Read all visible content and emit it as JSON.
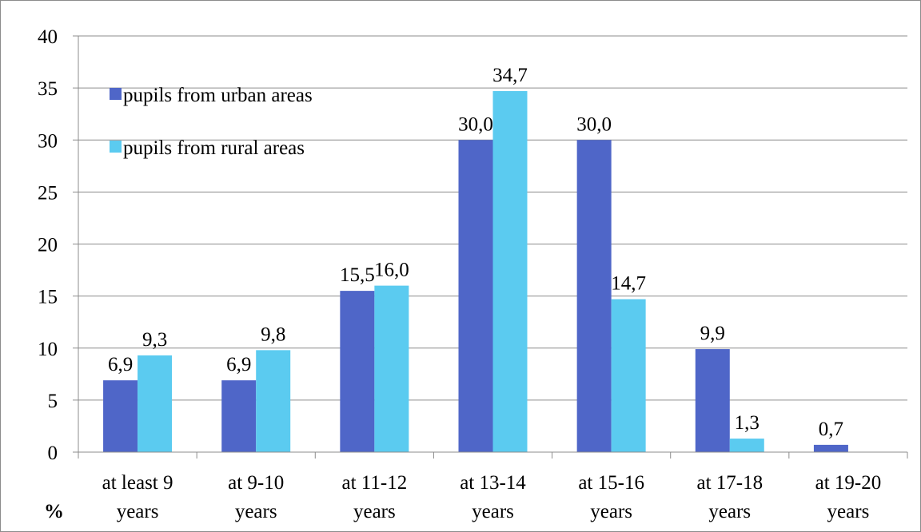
{
  "chart_data": {
    "type": "bar",
    "title": "",
    "xlabel": "",
    "ylabel": "%",
    "ylim": [
      0,
      40
    ],
    "yticks": [
      0,
      5,
      10,
      15,
      20,
      25,
      30,
      35,
      40
    ],
    "grid": "horizontal",
    "legend_position": "top-left",
    "categories": [
      [
        "at least 9",
        "years"
      ],
      [
        "at 9-10",
        "years"
      ],
      [
        "at 11-12",
        "years"
      ],
      [
        "at 13-14",
        "years"
      ],
      [
        "at 15-16",
        "years"
      ],
      [
        "at 17-18",
        "years"
      ],
      [
        "at 19-20",
        "years"
      ]
    ],
    "series": [
      {
        "name": "pupils from urban areas",
        "color": "#4f66c8",
        "values": [
          6.9,
          6.9,
          15.5,
          30.0,
          30.0,
          9.9,
          0.7
        ],
        "labels": [
          "6,9",
          "6,9",
          "15,5",
          "30,0",
          "30,0",
          "9,9",
          "0,7"
        ]
      },
      {
        "name": "pupils from rural areas",
        "color": "#5bcbf0",
        "values": [
          9.3,
          9.8,
          16.0,
          34.7,
          14.7,
          1.3,
          null
        ],
        "labels": [
          "9,3",
          "9,8",
          "16,0",
          "34,7",
          "14,7",
          "1,3",
          null
        ]
      }
    ]
  }
}
